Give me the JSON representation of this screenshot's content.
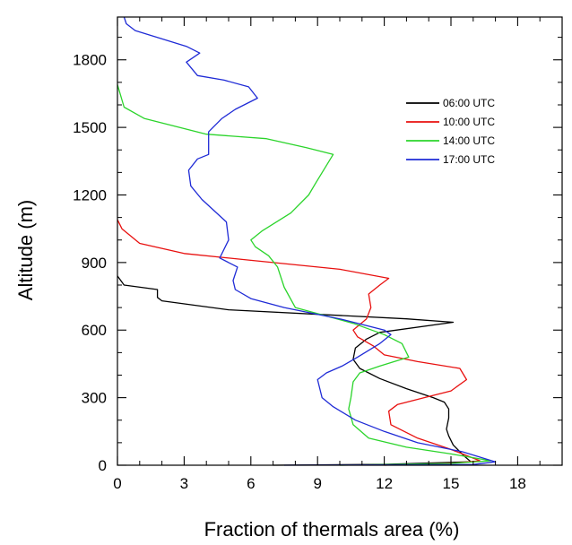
{
  "chart_data": {
    "type": "line",
    "xlabel": "Fraction of thermals area (%)",
    "ylabel": "Altitude (m)",
    "xlim": [
      0,
      20
    ],
    "ylim": [
      0,
      1990
    ],
    "xticks": [
      0,
      3,
      6,
      9,
      12,
      15,
      18
    ],
    "yticks": [
      0,
      300,
      600,
      900,
      1200,
      1500,
      1800
    ],
    "grid": false,
    "legend_position": "top-right",
    "series": [
      {
        "name": "06:00 UTC",
        "color": "#000000",
        "points": [
          [
            7.0,
            0
          ],
          [
            12.0,
            4
          ],
          [
            15.9,
            15
          ],
          [
            15.6,
            40
          ],
          [
            15.1,
            90
          ],
          [
            14.9,
            130
          ],
          [
            14.8,
            160
          ],
          [
            14.9,
            210
          ],
          [
            14.9,
            250
          ],
          [
            14.7,
            280
          ],
          [
            14.2,
            300
          ],
          [
            13.0,
            340
          ],
          [
            11.8,
            385
          ],
          [
            10.9,
            430
          ],
          [
            10.6,
            470
          ],
          [
            10.7,
            520
          ],
          [
            11.2,
            560
          ],
          [
            11.8,
            590
          ],
          [
            15.1,
            635
          ],
          [
            13.0,
            650
          ],
          [
            5.0,
            690
          ],
          [
            2.0,
            730
          ],
          [
            1.8,
            745
          ],
          [
            1.8,
            780
          ],
          [
            0.3,
            800
          ],
          [
            0.0,
            840
          ]
        ]
      },
      {
        "name": "10:00 UTC",
        "color": "#e8100f",
        "points": [
          [
            12.0,
            0
          ],
          [
            15.2,
            10
          ],
          [
            16.3,
            20
          ],
          [
            15.0,
            70
          ],
          [
            13.5,
            120
          ],
          [
            12.3,
            180
          ],
          [
            12.2,
            240
          ],
          [
            12.6,
            270
          ],
          [
            13.8,
            300
          ],
          [
            15.0,
            330
          ],
          [
            15.7,
            380
          ],
          [
            15.4,
            430
          ],
          [
            13.5,
            460
          ],
          [
            12.0,
            490
          ],
          [
            11.5,
            530
          ],
          [
            10.8,
            570
          ],
          [
            10.6,
            600
          ],
          [
            11.2,
            650
          ],
          [
            11.4,
            700
          ],
          [
            11.3,
            760
          ],
          [
            11.8,
            800
          ],
          [
            12.2,
            830
          ],
          [
            10.0,
            870
          ],
          [
            6.0,
            910
          ],
          [
            3.0,
            940
          ],
          [
            1.0,
            985
          ],
          [
            0.2,
            1050
          ],
          [
            0.0,
            1090
          ]
        ]
      },
      {
        "name": "14:00 UTC",
        "color": "#2bd42b",
        "points": [
          [
            10.0,
            0
          ],
          [
            15.0,
            8
          ],
          [
            16.8,
            20
          ],
          [
            15.0,
            50
          ],
          [
            13.0,
            80
          ],
          [
            11.3,
            120
          ],
          [
            10.6,
            180
          ],
          [
            10.4,
            250
          ],
          [
            10.5,
            300
          ],
          [
            10.6,
            370
          ],
          [
            10.9,
            410
          ],
          [
            11.8,
            440
          ],
          [
            13.1,
            480
          ],
          [
            12.8,
            540
          ],
          [
            12.0,
            580
          ],
          [
            10.6,
            630
          ],
          [
            8.0,
            700
          ],
          [
            7.5,
            790
          ],
          [
            7.2,
            880
          ],
          [
            6.8,
            930
          ],
          [
            6.2,
            970
          ],
          [
            6.0,
            1000
          ],
          [
            6.5,
            1040
          ],
          [
            7.8,
            1120
          ],
          [
            8.6,
            1200
          ],
          [
            8.9,
            1250
          ],
          [
            9.7,
            1380
          ],
          [
            8.5,
            1410
          ],
          [
            6.7,
            1450
          ],
          [
            4.0,
            1470
          ],
          [
            1.2,
            1540
          ],
          [
            0.3,
            1590
          ],
          [
            0.0,
            1690
          ]
        ]
      },
      {
        "name": "17:00 UTC",
        "color": "#1f2bd6",
        "points": [
          [
            7.5,
            0
          ],
          [
            16.0,
            3
          ],
          [
            17.0,
            15
          ],
          [
            15.5,
            60
          ],
          [
            13.5,
            100
          ],
          [
            12.0,
            150
          ],
          [
            10.7,
            200
          ],
          [
            9.7,
            260
          ],
          [
            9.2,
            300
          ],
          [
            9.0,
            380
          ],
          [
            9.4,
            410
          ],
          [
            10.1,
            440
          ],
          [
            10.8,
            480
          ],
          [
            11.8,
            540
          ],
          [
            12.3,
            580
          ],
          [
            12.0,
            600
          ],
          [
            10.0,
            650
          ],
          [
            7.5,
            700
          ],
          [
            6.0,
            740
          ],
          [
            5.3,
            780
          ],
          [
            5.2,
            820
          ],
          [
            5.4,
            880
          ],
          [
            5.0,
            900
          ],
          [
            4.6,
            920
          ],
          [
            5.0,
            1000
          ],
          [
            4.9,
            1080
          ],
          [
            3.8,
            1180
          ],
          [
            3.3,
            1240
          ],
          [
            3.2,
            1310
          ],
          [
            3.6,
            1360
          ],
          [
            4.1,
            1380
          ],
          [
            4.1,
            1480
          ],
          [
            4.7,
            1540
          ],
          [
            5.3,
            1580
          ],
          [
            6.3,
            1630
          ],
          [
            5.9,
            1680
          ],
          [
            4.8,
            1710
          ],
          [
            3.6,
            1730
          ],
          [
            3.1,
            1790
          ],
          [
            3.7,
            1830
          ],
          [
            3.1,
            1860
          ],
          [
            0.8,
            1930
          ],
          [
            0.4,
            1960
          ],
          [
            0.3,
            1990
          ]
        ]
      }
    ]
  }
}
